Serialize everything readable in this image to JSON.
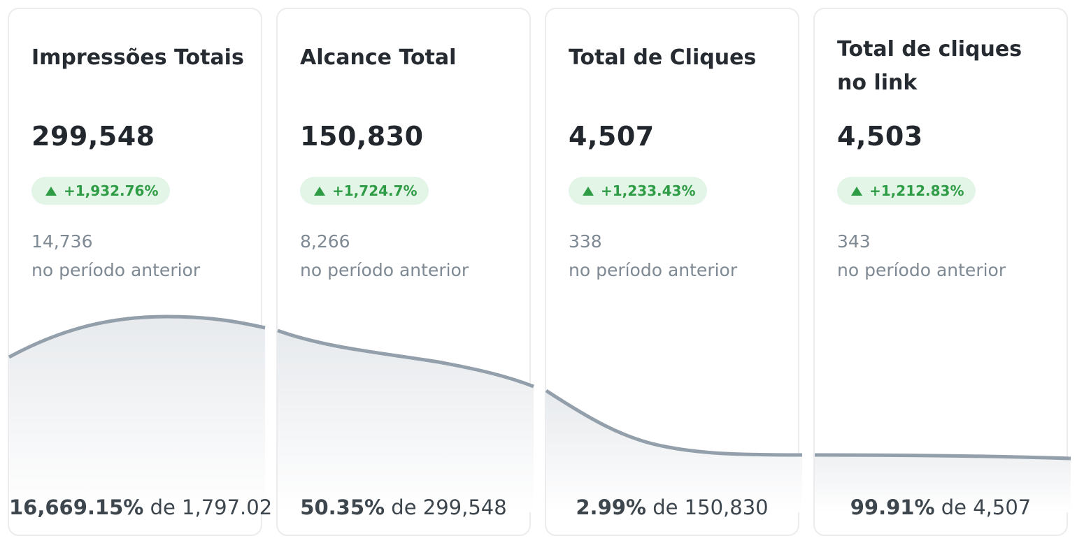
{
  "colors": {
    "positive": "#2e9c45",
    "positive_bg": "#e3f5e7",
    "sparkline": "#939fab",
    "muted_text": "#7e8993"
  },
  "cards": [
    {
      "title": "Impressões Totais",
      "value": "299,548",
      "change": "+1,932.76%",
      "change_icon": "triangle-up-icon",
      "previous_value": "14,736",
      "previous_label": "no período anterior",
      "ratio_percent": "16,669.15%",
      "ratio_of": "de",
      "ratio_base": "1,797.02"
    },
    {
      "title": "Alcance Total",
      "value": "150,830",
      "change": "+1,724.7%",
      "change_icon": "triangle-up-icon",
      "previous_value": "8,266",
      "previous_label": "no período anterior",
      "ratio_percent": "50.35%",
      "ratio_of": "de",
      "ratio_base": "299,548"
    },
    {
      "title": "Total de Cliques",
      "value": "4,507",
      "change": "+1,233.43%",
      "change_icon": "triangle-up-icon",
      "previous_value": "338",
      "previous_label": "no período anterior",
      "ratio_percent": "2.99%",
      "ratio_of": "de",
      "ratio_base": "150,830"
    },
    {
      "title": "Total de cliques no link",
      "value": "4,503",
      "change": "+1,212.83%",
      "change_icon": "triangle-up-icon",
      "previous_value": "343",
      "previous_label": "no período anterior",
      "ratio_percent": "99.91%",
      "ratio_of": "de",
      "ratio_base": "4,507"
    }
  ]
}
